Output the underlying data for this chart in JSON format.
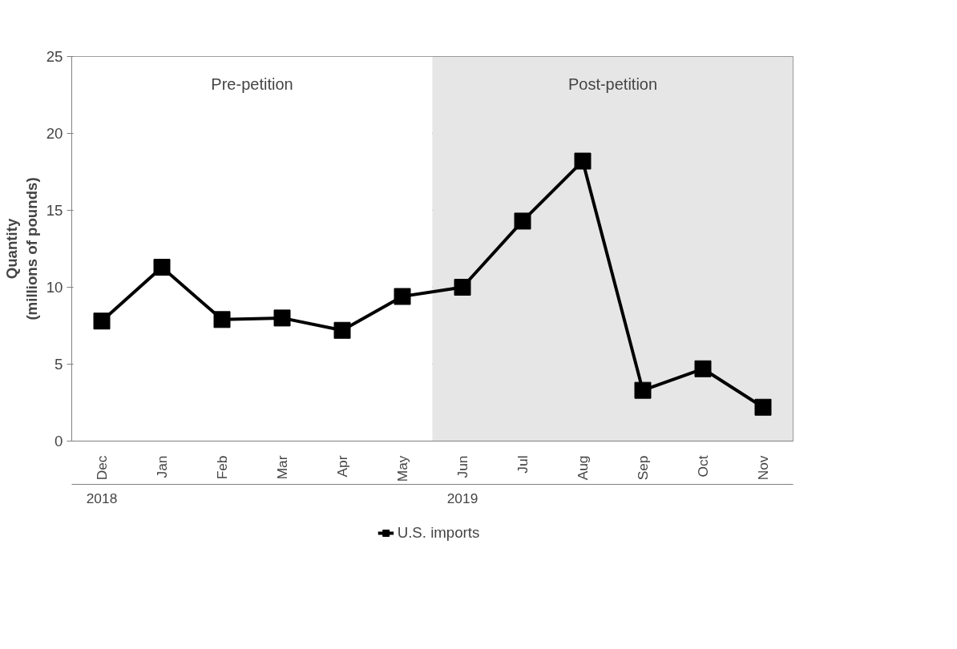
{
  "chart_data": {
    "type": "line",
    "ylabel": "Quantity\n(millions of pounds)",
    "categories": [
      "Dec",
      "Jan",
      "Feb",
      "Mar",
      "Apr",
      "May",
      "Jun",
      "Jul",
      "Aug",
      "Sep",
      "Oct",
      "Nov"
    ],
    "series": [
      {
        "name": "U.S. imports",
        "color": "#000000",
        "values": [
          7.8,
          11.3,
          7.9,
          8.0,
          7.2,
          9.4,
          10.0,
          14.3,
          18.2,
          3.3,
          4.7,
          2.2
        ]
      }
    ],
    "ylim": [
      0,
      25
    ],
    "yticks": [
      0,
      5,
      10,
      15,
      20,
      25
    ],
    "grid": "y",
    "marker": "square",
    "line_style": "solid",
    "legend": "bottom",
    "bands": [
      {
        "axis": "x",
        "from": "Dec",
        "to": "May",
        "label": "Pre-petition",
        "color": "#ffffff"
      },
      {
        "axis": "x",
        "from": "Jun",
        "to": "Nov",
        "label": "Post-petition",
        "color": "#e6e6e6"
      }
    ],
    "annotations": [
      "2018",
      "2019"
    ]
  }
}
